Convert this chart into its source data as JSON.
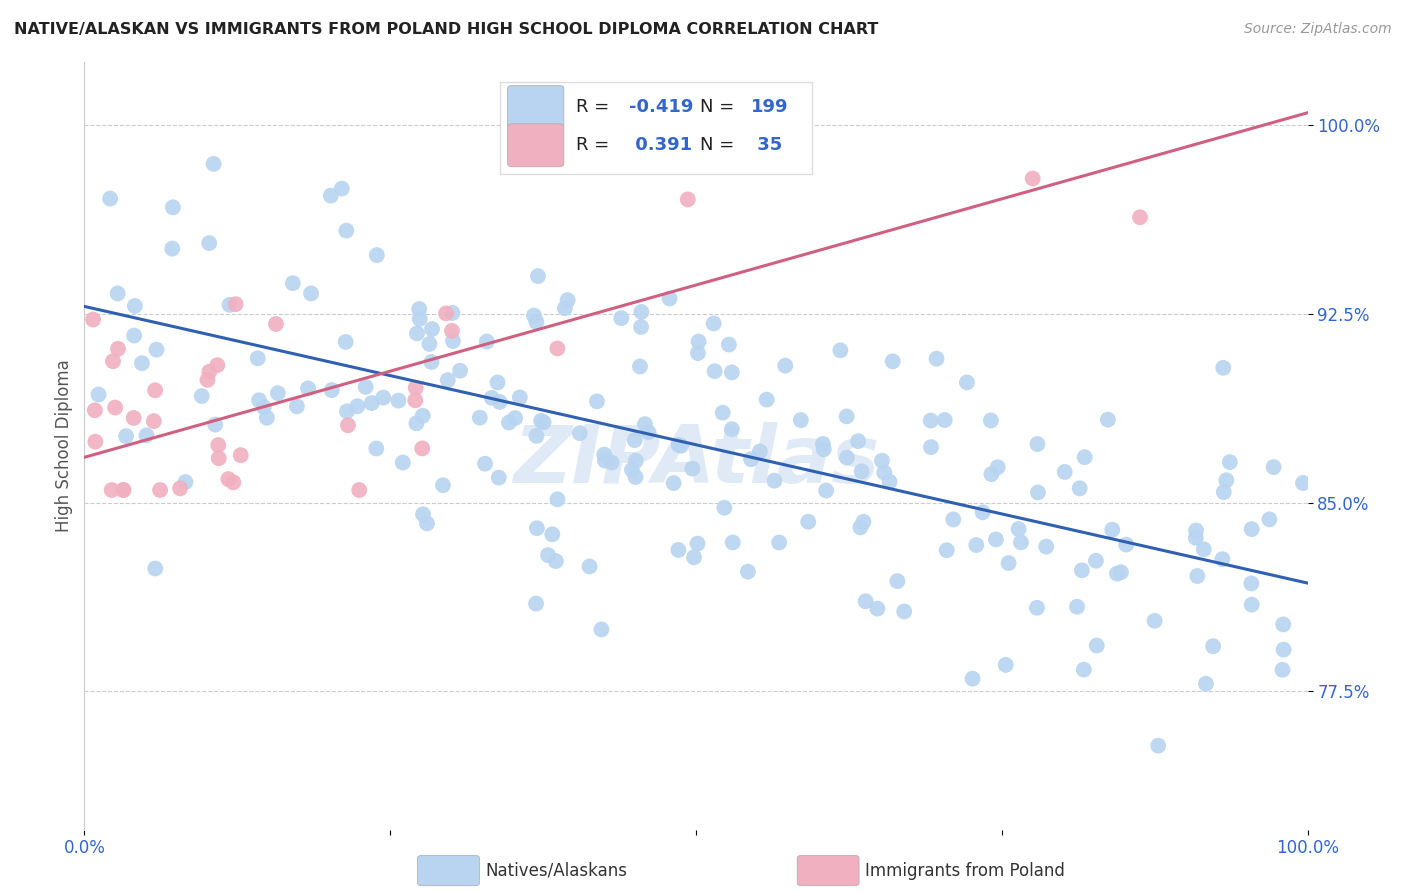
{
  "title": "NATIVE/ALASKAN VS IMMIGRANTS FROM POLAND HIGH SCHOOL DIPLOMA CORRELATION CHART",
  "source": "Source: ZipAtlas.com",
  "ylabel": "High School Diploma",
  "yticks": [
    "77.5%",
    "85.0%",
    "92.5%",
    "100.0%"
  ],
  "ytick_vals": [
    0.775,
    0.85,
    0.925,
    1.0
  ],
  "watermark": "ZIPAtlas",
  "legend_r_blue": "-0.419",
  "legend_n_blue": "199",
  "legend_r_pink": "0.391",
  "legend_n_pink": "35",
  "blue_color": "#b8d4f0",
  "pink_color": "#f0b0c0",
  "blue_line_color": "#3060b0",
  "pink_line_color": "#d06080",
  "title_color": "#222222",
  "source_color": "#999999",
  "tick_label_color": "#3366cc",
  "background_color": "#ffffff",
  "xlim": [
    0.0,
    1.0
  ],
  "ylim": [
    0.72,
    1.025
  ],
  "blue_line_x0": 0.0,
  "blue_line_y0": 0.928,
  "blue_line_x1": 1.0,
  "blue_line_y1": 0.818,
  "pink_line_x0": 0.0,
  "pink_line_y0": 0.868,
  "pink_line_x1": 1.0,
  "pink_line_y1": 1.005
}
